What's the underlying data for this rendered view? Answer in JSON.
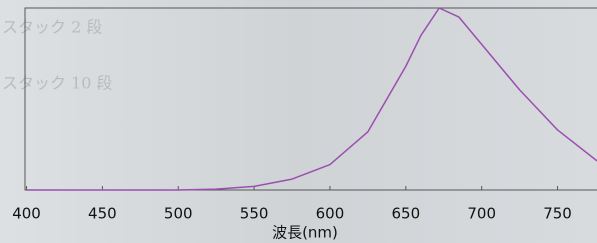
{
  "chart_data": {
    "type": "line",
    "x_label": "波長(nm)",
    "annotations": [
      "スタック 2 段",
      "スタック 10 段"
    ],
    "x": [
      400,
      450,
      500,
      525,
      550,
      575,
      600,
      625,
      650,
      660,
      672,
      685,
      700,
      725,
      750,
      776
    ],
    "series": [
      {
        "color": "#9b4fb0",
        "values": [
          0,
          0,
          0,
          0.005,
          0.02,
          0.06,
          0.14,
          0.32,
          0.68,
          0.85,
          1.0,
          0.95,
          0.8,
          0.55,
          0.33,
          0.16
        ]
      }
    ],
    "xlim": [
      399,
      776
    ],
    "ylim": [
      0,
      1
    ],
    "xticks": [
      400,
      450,
      500,
      550,
      600,
      650,
      700,
      750
    ]
  }
}
